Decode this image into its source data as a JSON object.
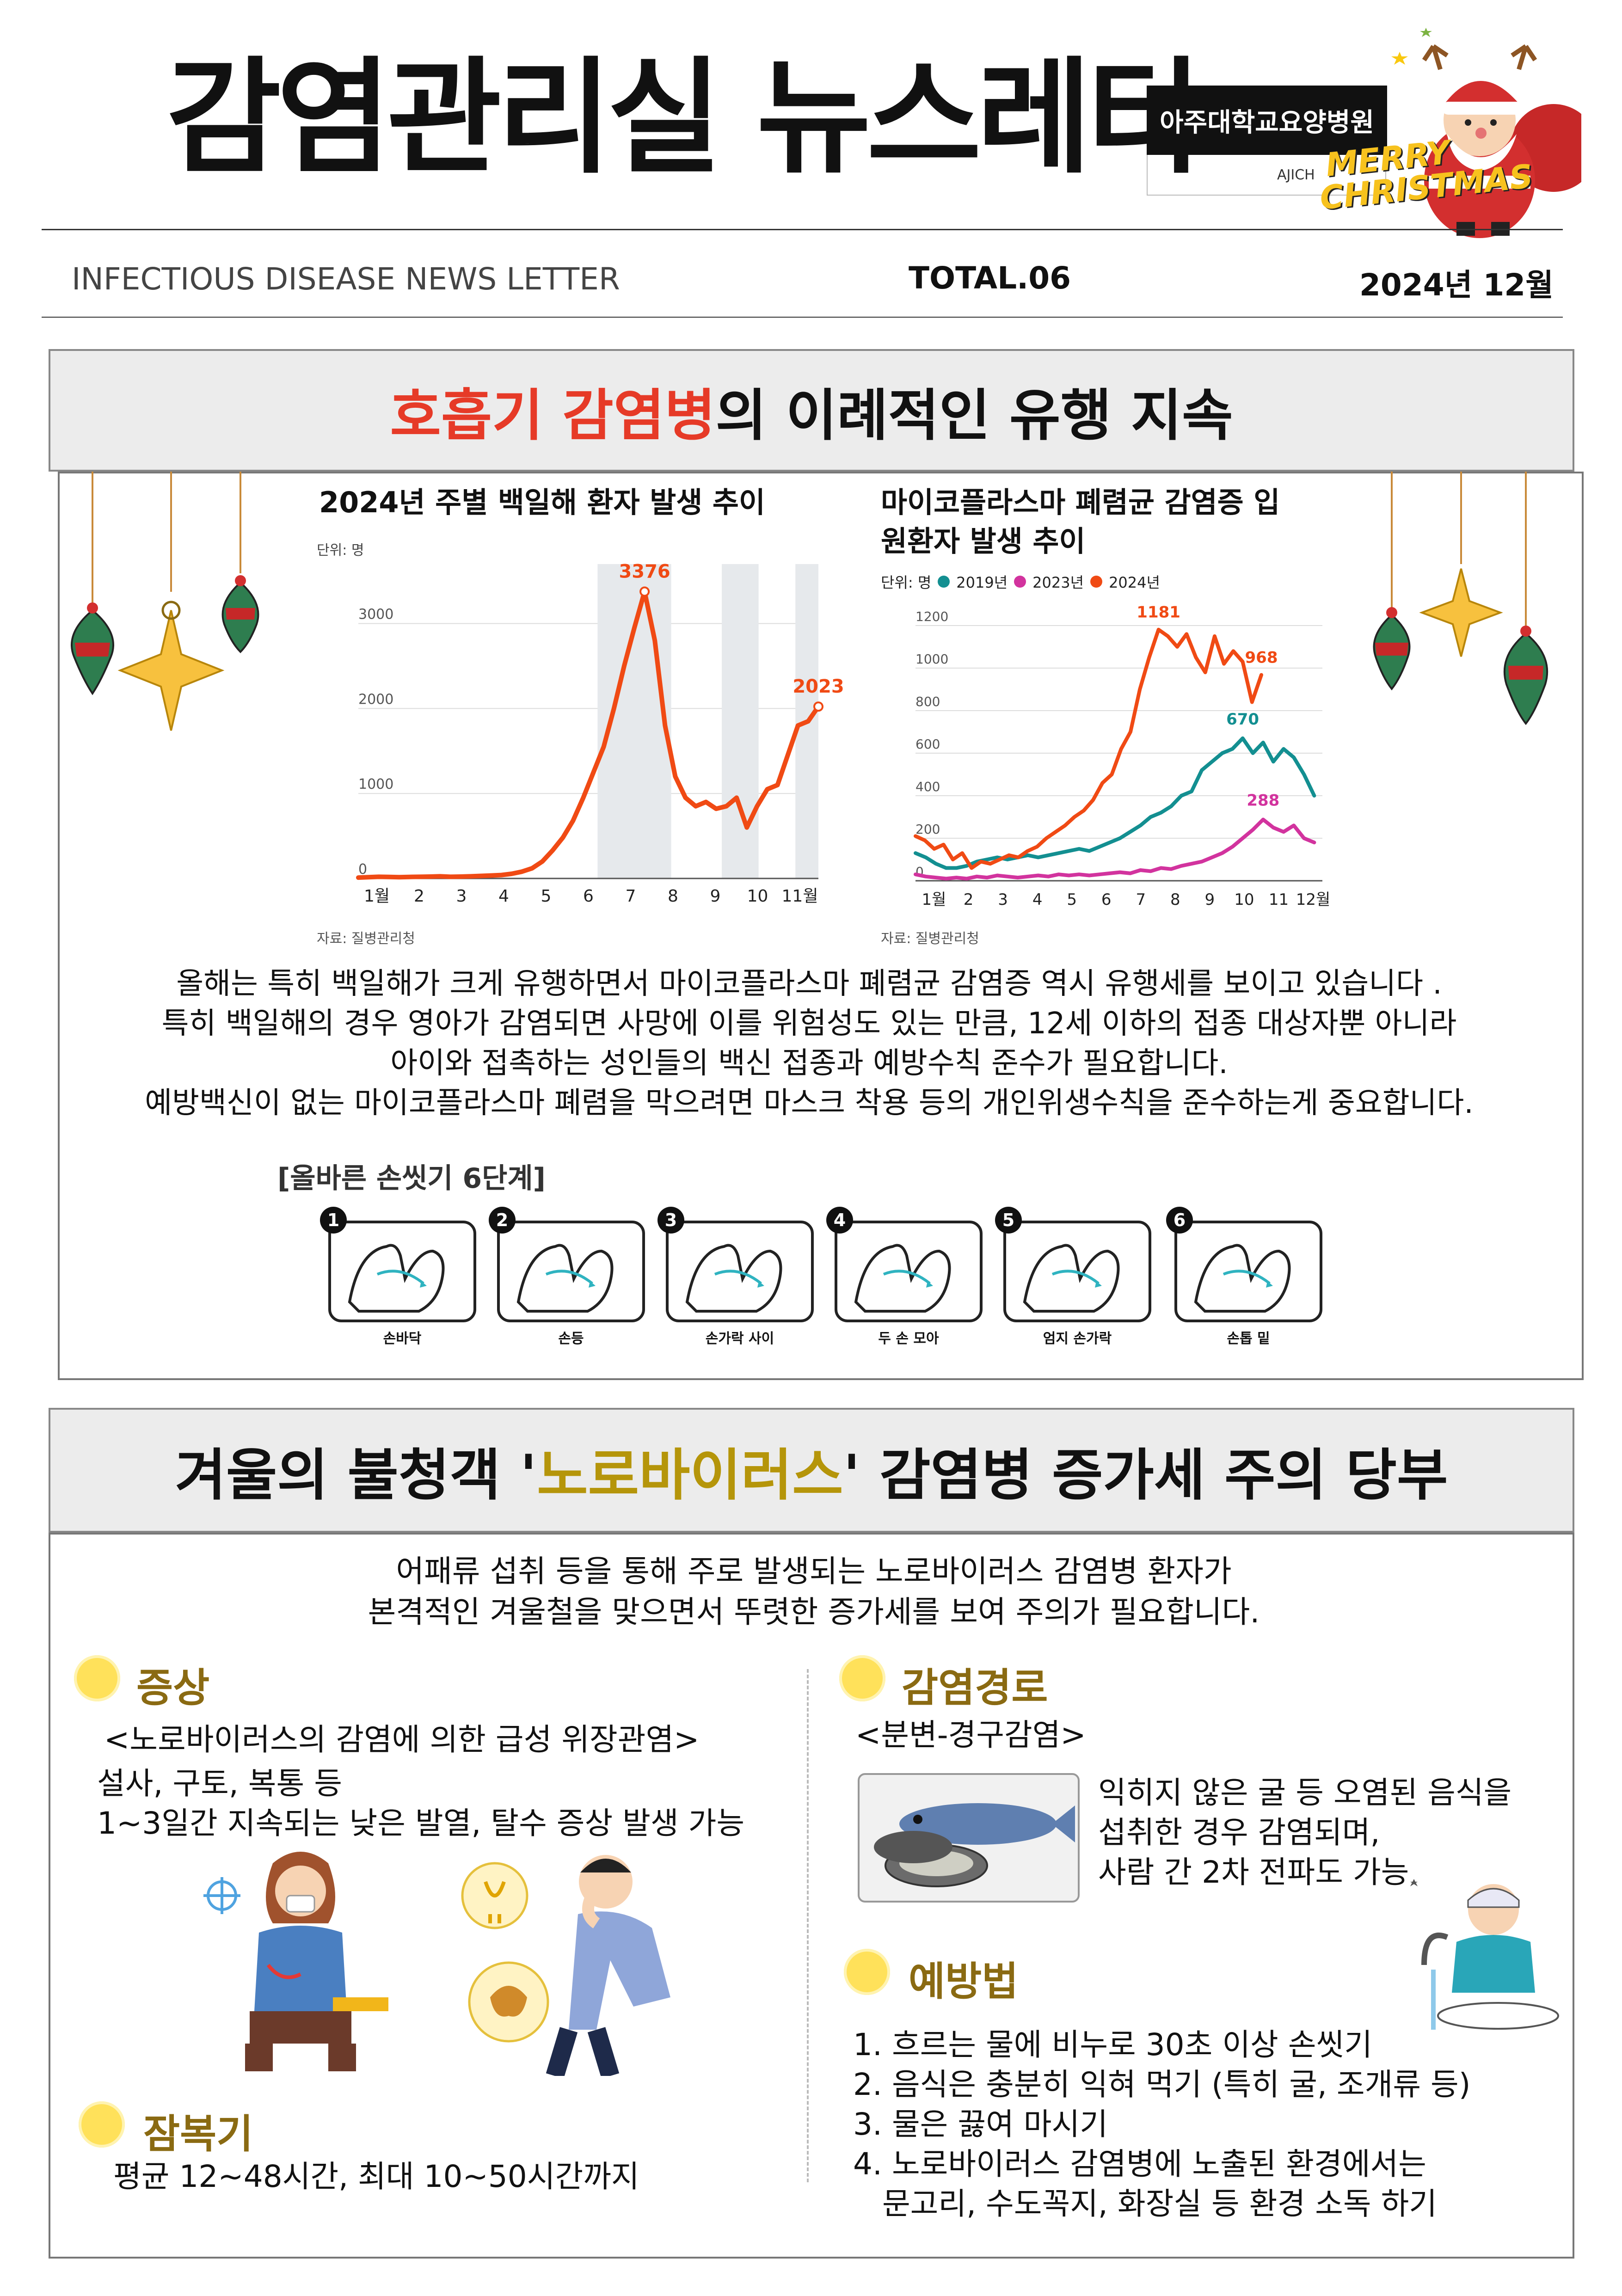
{
  "header": {
    "title": "감염관리실 뉴스레터",
    "hospital_name": "아주대학교요양병원",
    "hospital_abbr": "AJICH",
    "xmas_line1": "MERRY",
    "xmas_line2": "CHRISTMAS",
    "subtitle_en": "INFECTIOUS DISEASE NEWS LETTER",
    "issue": "TOTAL.06",
    "date": "2024년 12월"
  },
  "section1": {
    "heading_highlight": "호흡기 감염병",
    "heading_rest": "의 이례적인 유행 지속",
    "paragraph": [
      "올해는 특히 백일해가 크게 유행하면서 마이코플라스마 폐렴균 감염증 역시 유행세를 보이고 있습니다 .",
      "특히 백일해의 경우 영아가 감염되면 사망에 이를 위험성도 있는 만큼, 12세 이하의 접종 대상자뿐 아니라",
      "아이와 접촉하는 성인들의 백신 접종과 예방수칙 준수가 필요합니다.",
      "예방백신이 없는 마이코플라스마 폐렴을 막으려면 마스크 착용 등의 개인위생수칙을 준수하는게 중요합니다."
    ],
    "handwash_title": "[올바른 손씻기 6단계]",
    "handwash_steps": [
      {
        "num": "1",
        "label": "손바닥"
      },
      {
        "num": "2",
        "label": "손등"
      },
      {
        "num": "3",
        "label": "손가락 사이"
      },
      {
        "num": "4",
        "label": "두 손 모아"
      },
      {
        "num": "5",
        "label": "엄지 손가락"
      },
      {
        "num": "6",
        "label": "손톱 밑"
      }
    ]
  },
  "chart_data": [
    {
      "type": "line",
      "title": "2024년 주별 백일해 환자 발생 추이",
      "unit": "단위: 명",
      "source": "자료: 질병관리청",
      "x_tick_labels": [
        "1월",
        "2",
        "3",
        "4",
        "5",
        "6",
        "7",
        "8",
        "9",
        "10",
        "11월"
      ],
      "y_ticks": [
        "0",
        "1000",
        "2000",
        "3000"
      ],
      "ylim": [
        0,
        3700
      ],
      "annotations": [
        "3376",
        "2023"
      ],
      "series": [
        {
          "color": "#f04a14",
          "values": [
            10,
            15,
            20,
            18,
            15,
            18,
            20,
            22,
            25,
            20,
            22,
            25,
            30,
            35,
            40,
            55,
            80,
            120,
            200,
            330,
            480,
            680,
            950,
            1250,
            1550,
            2000,
            2500,
            2950,
            3376,
            2800,
            1800,
            1200,
            950,
            850,
            900,
            820,
            850,
            950,
            600,
            850,
            1050,
            1100,
            1450,
            1800,
            1850,
            2023
          ]
        }
      ]
    },
    {
      "type": "line",
      "title": "마이코플라스마 폐렴균 감염증 입원환자 발생 추이",
      "unit": "단위: 명",
      "source": "자료: 질병관리청",
      "x_tick_labels": [
        "1월",
        "2",
        "3",
        "4",
        "5",
        "6",
        "7",
        "8",
        "9",
        "10",
        "11",
        "12월"
      ],
      "y_ticks": [
        "0",
        "200",
        "400",
        "600",
        "800",
        "1000",
        "1200"
      ],
      "ylim": [
        0,
        1250
      ],
      "annotations": [
        "1181",
        "968",
        "670",
        "288"
      ],
      "series": [
        {
          "name": "2019년",
          "color": "#138f91",
          "values": [
            130,
            110,
            80,
            60,
            60,
            70,
            90,
            100,
            110,
            100,
            110,
            120,
            110,
            120,
            130,
            140,
            150,
            140,
            160,
            180,
            200,
            230,
            260,
            300,
            320,
            350,
            400,
            420,
            520,
            560,
            600,
            620,
            670,
            600,
            650,
            560,
            620,
            580,
            500,
            400
          ]
        },
        {
          "name": "2023년",
          "color": "#d2339e",
          "values": [
            30,
            20,
            15,
            10,
            15,
            10,
            20,
            15,
            25,
            20,
            15,
            20,
            25,
            20,
            30,
            25,
            30,
            25,
            30,
            35,
            40,
            35,
            50,
            45,
            60,
            55,
            70,
            80,
            90,
            110,
            130,
            160,
            200,
            240,
            288,
            250,
            230,
            260,
            200,
            180
          ]
        },
        {
          "name": "2024년",
          "color": "#f04a14",
          "values": [
            210,
            190,
            150,
            170,
            100,
            130,
            60,
            90,
            80,
            100,
            120,
            110,
            140,
            160,
            200,
            230,
            260,
            300,
            330,
            380,
            460,
            500,
            620,
            700,
            900,
            1050,
            1181,
            1150,
            1100,
            1160,
            1050,
            980,
            1150,
            1020,
            1080,
            1030,
            840,
            968
          ]
        }
      ]
    }
  ],
  "section2": {
    "heading_pre": "겨울의 불청객 '",
    "heading_highlight": "노로바이러스",
    "heading_post": "' 감염병 증가세 주의 당부",
    "intro": [
      "어패류 섭취 등을 통해 주로 발생되는 노로바이러스 감염병 환자가",
      "본격적인 겨울철을 맞으면서 뚜렷한 증가세를 보여 주의가 필요합니다."
    ],
    "symptoms": {
      "heading": "증상",
      "subtitle": "<노로바이러스의 감염에 의한 급성 위장관염>",
      "lines": [
        "설사, 구토, 복통 등",
        "1~3일간 지속되는 낮은 발열, 탈수 증상 발생 가능"
      ]
    },
    "incubation": {
      "heading": "잠복기",
      "text": "평균 12~48시간, 최대 10~50시간까지"
    },
    "route": {
      "heading": "감염경로",
      "subtitle": "<분변-경구감염>",
      "lines": [
        "익히지 않은 굴 등 오염된 음식을",
        "섭취한 경우 감염되며,",
        "사람 간 2차 전파도 가능"
      ]
    },
    "prevention": {
      "heading": "예방법",
      "items": [
        "1. 흐르는 물에 비누로 30초 이상 손씻기",
        "2. 음식은 충분히 익혀 먹기 (특히 굴, 조개류 등)",
        "3. 물은 끓여 마시기",
        "4. 노로바이러스 감염병에 노출된 환경에서는",
        "   문고리, 수도꼭지, 화장실 등 환경 소독 하기"
      ]
    }
  }
}
